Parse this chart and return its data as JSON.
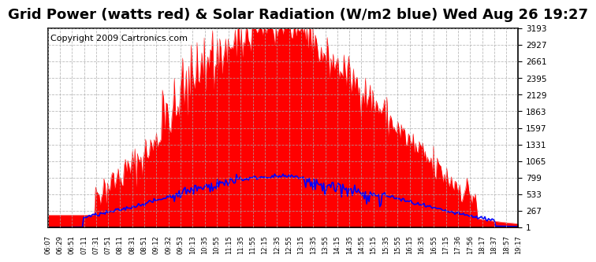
{
  "title": "Grid Power (watts red) & Solar Radiation (W/m2 blue) Wed Aug 26 19:27",
  "copyright": "Copyright 2009 Cartronics.com",
  "y_ticks": [
    1.4,
    267.4,
    533.4,
    799.3,
    1065.3,
    1331.3,
    1597.3,
    1863.2,
    2129.2,
    2395.2,
    2661.1,
    2927.1,
    3193.1
  ],
  "y_min": 1.4,
  "y_max": 3193.1,
  "bg_color": "#ffffff",
  "plot_bg_color": "#ffffff",
  "grid_color": "#aaaaaa",
  "red_color": "#ff0000",
  "blue_color": "#0000ff",
  "title_fontsize": 13,
  "copyright_fontsize": 8,
  "x_labels": [
    "06:07",
    "06:29",
    "06:51",
    "07:11",
    "07:31",
    "07:51",
    "08:11",
    "08:31",
    "08:51",
    "09:12",
    "09:32",
    "09:53",
    "10:13",
    "10:35",
    "10:55",
    "11:15",
    "11:35",
    "11:55",
    "12:15",
    "12:35",
    "12:55",
    "13:15",
    "13:35",
    "13:55",
    "14:15",
    "14:35",
    "14:55",
    "15:15",
    "15:35",
    "15:55",
    "16:15",
    "16:35",
    "16:55",
    "17:15",
    "17:36",
    "17:56",
    "18:17",
    "18:37",
    "18:57",
    "19:17"
  ]
}
